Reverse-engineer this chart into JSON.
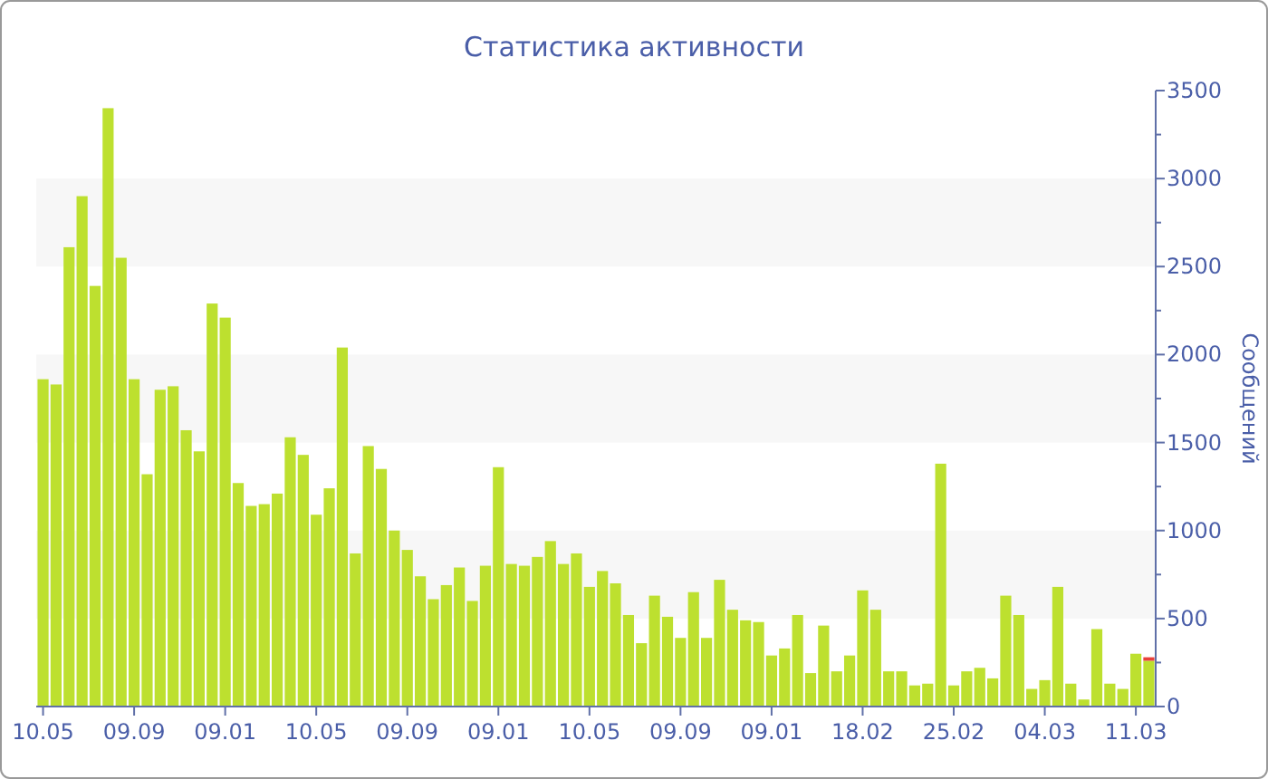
{
  "chart_data": {
    "type": "bar",
    "title": "Статистика активности",
    "ylabel": "Сообщений",
    "stacked": true,
    "categories": [
      "10.05",
      null,
      null,
      null,
      null,
      null,
      null,
      "09.09",
      null,
      null,
      null,
      null,
      null,
      null,
      "09.01",
      null,
      null,
      null,
      null,
      null,
      null,
      "10.05",
      null,
      null,
      null,
      null,
      null,
      null,
      "09.09",
      null,
      null,
      null,
      null,
      null,
      null,
      "09.01",
      null,
      null,
      null,
      null,
      null,
      null,
      "10.05",
      null,
      null,
      null,
      null,
      null,
      null,
      "09.09",
      null,
      null,
      null,
      null,
      null,
      null,
      "09.01",
      null,
      null,
      null,
      null,
      null,
      null,
      "18.02",
      null,
      null,
      null,
      null,
      null,
      null,
      "25.02",
      null,
      null,
      null,
      null,
      null,
      null,
      "04.03",
      null,
      null,
      null,
      null,
      null,
      null,
      "11.03",
      null
    ],
    "series": [
      {
        "color": "#bde02f",
        "values": [
          1860,
          1830,
          2610,
          2900,
          2390,
          3400,
          2550,
          1860,
          1320,
          1800,
          1820,
          1570,
          1450,
          2290,
          2210,
          1270,
          1140,
          1150,
          1210,
          1530,
          1430,
          1090,
          1240,
          2040,
          870,
          1480,
          1350,
          1000,
          890,
          740,
          610,
          690,
          790,
          600,
          800,
          1360,
          810,
          800,
          850,
          940,
          810,
          870,
          680,
          770,
          700,
          520,
          360,
          630,
          510,
          390,
          650,
          390,
          720,
          550,
          490,
          480,
          290,
          330,
          520,
          190,
          460,
          200,
          290,
          660,
          550,
          200,
          200,
          120,
          130,
          1380,
          120,
          200,
          220,
          160,
          630,
          520,
          100,
          150,
          680,
          130,
          40,
          440,
          130,
          100,
          300,
          260
        ]
      },
      {
        "color": "#e8403a",
        "values": [
          0,
          0,
          0,
          0,
          0,
          0,
          0,
          0,
          0,
          0,
          0,
          0,
          0,
          0,
          0,
          0,
          0,
          0,
          0,
          0,
          0,
          0,
          0,
          0,
          0,
          0,
          0,
          0,
          0,
          0,
          0,
          0,
          0,
          0,
          0,
          0,
          0,
          0,
          0,
          0,
          0,
          0,
          0,
          0,
          0,
          0,
          0,
          0,
          0,
          0,
          0,
          0,
          0,
          0,
          0,
          0,
          0,
          0,
          0,
          0,
          0,
          0,
          0,
          0,
          0,
          0,
          0,
          0,
          0,
          0,
          0,
          0,
          0,
          0,
          0,
          0,
          0,
          0,
          0,
          0,
          0,
          0,
          0,
          0,
          0,
          20
        ]
      }
    ],
    "ylim": [
      0,
      3500
    ],
    "yticks": [
      0,
      {
        "value": 250,
        "label": null
      },
      500,
      {
        "value": 750,
        "label": null
      },
      1000,
      {
        "value": 1250,
        "label": null
      },
      1500,
      {
        "value": 1750,
        "label": null
      },
      2000,
      {
        "value": 2250,
        "label": null
      },
      2500,
      {
        "value": 2750,
        "label": null
      },
      3000,
      {
        "value": 3250,
        "label": null
      },
      3500
    ],
    "bands": [
      {
        "axis": "y",
        "from": 500,
        "to": 1000,
        "color": "#f7f7f7"
      },
      {
        "axis": "y",
        "from": 1500,
        "to": 2000,
        "color": "#f7f7f7"
      },
      {
        "axis": "y",
        "from": 2500,
        "to": 3000,
        "color": "#f7f7f7"
      }
    ],
    "grid": false
  }
}
